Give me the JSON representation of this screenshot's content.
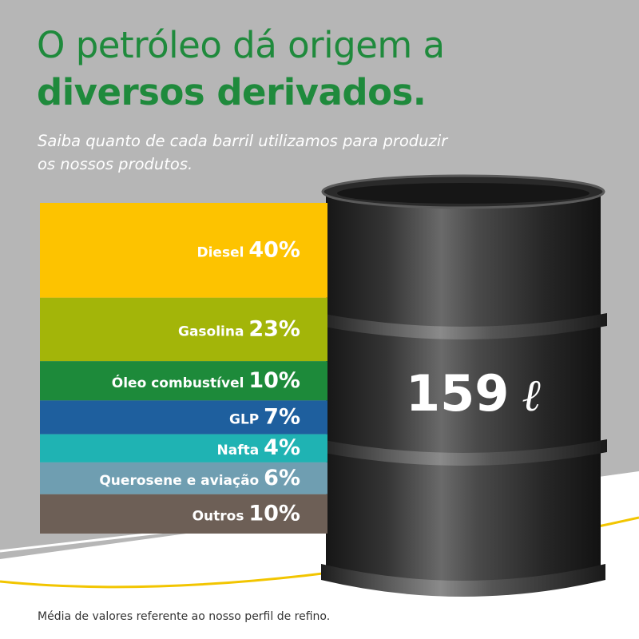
{
  "header": {
    "title_line1": "O petróleo dá origem a",
    "title_line2": "diversos derivados.",
    "subtitle": "Saiba quanto de cada barril utilizamos para produzir os nossos produtos."
  },
  "barrel": {
    "volume": "159",
    "unit": "ℓ"
  },
  "footnote": "Média de valores referente ao nosso perfil de refino.",
  "colors": {
    "title": "#1f8a3c",
    "background": "#b6b6b6",
    "accent_line": "#f2c500"
  },
  "chart_data": {
    "type": "bar",
    "orientation": "stacked-horizontal-bands",
    "categories": [
      "Diesel",
      "Gasolina",
      "Óleo combustível",
      "GLP",
      "Nafta",
      "Querosene e aviação",
      "Outros"
    ],
    "values": [
      40,
      23,
      10,
      7,
      4,
      6,
      10
    ],
    "value_labels": [
      "40%",
      "23%",
      "10%",
      "7%",
      "4%",
      "6%",
      "10%"
    ],
    "unit": "%",
    "colors": [
      "#fdc300",
      "#a3b509",
      "#1d8a3a",
      "#1e5f9e",
      "#1fb3b3",
      "#6f9eb1",
      "#6d5f56"
    ]
  }
}
